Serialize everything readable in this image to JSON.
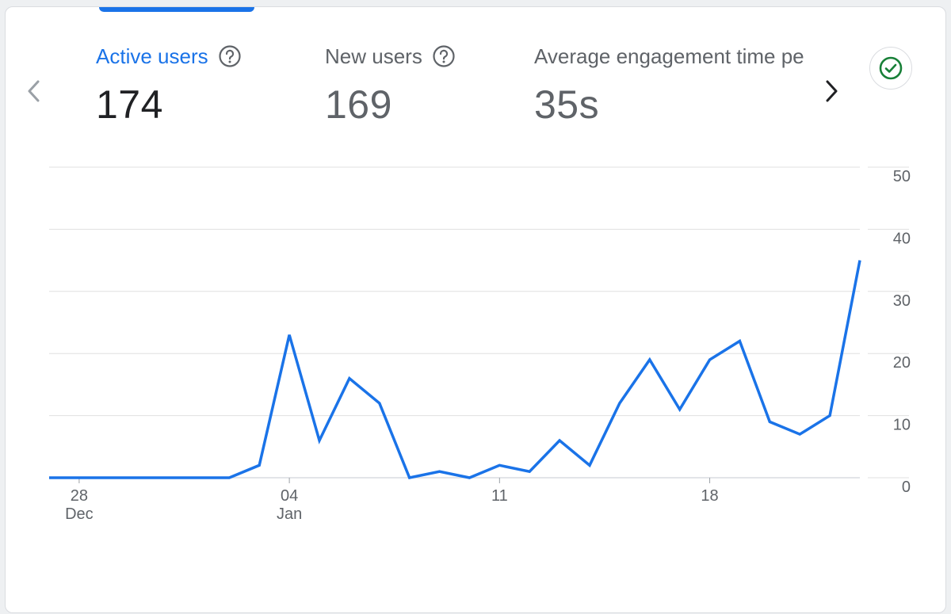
{
  "metrics": [
    {
      "label": "Active users",
      "value": "174"
    },
    {
      "label": "New users",
      "value": "169"
    },
    {
      "label": "Average engagement time per active user",
      "value": "35s"
    }
  ],
  "icons": {
    "prev": "chevron-left-icon",
    "next": "chevron-right-icon",
    "help": "help-circle-icon",
    "status": "check-circle-icon"
  },
  "colors": {
    "accent": "#1a73e8",
    "line": "#1a73e8",
    "status_green": "#188038",
    "grid": "#e0e0e0",
    "muted_text": "#5f6368"
  },
  "chart_data": {
    "type": "line",
    "x": [
      "2023-12-27",
      "2023-12-28",
      "2023-12-29",
      "2023-12-30",
      "2023-12-31",
      "2024-01-01",
      "2024-01-02",
      "2024-01-03",
      "2024-01-04",
      "2024-01-05",
      "2024-01-06",
      "2024-01-07",
      "2024-01-08",
      "2024-01-09",
      "2024-01-10",
      "2024-01-11",
      "2024-01-12",
      "2024-01-13",
      "2024-01-14",
      "2024-01-15",
      "2024-01-16",
      "2024-01-17",
      "2024-01-18",
      "2024-01-19",
      "2024-01-20",
      "2024-01-21",
      "2024-01-22",
      "2024-01-23"
    ],
    "series": [
      {
        "values": [
          0,
          0,
          0,
          0,
          0,
          0,
          0,
          2,
          23,
          6,
          16,
          12,
          0,
          1,
          0,
          2,
          1,
          6,
          2,
          12,
          19,
          11,
          19,
          22,
          9,
          7,
          10,
          35
        ]
      }
    ],
    "x_tick_labels": [
      {
        "date": "2023-12-28",
        "day": "28",
        "month": "Dec"
      },
      {
        "date": "2024-01-04",
        "day": "04",
        "month": "Jan"
      },
      {
        "date": "2024-01-11",
        "day": "11",
        "month": ""
      },
      {
        "date": "2024-01-18",
        "day": "18",
        "month": ""
      }
    ],
    "y_ticks": [
      0,
      10,
      20,
      30,
      40,
      50
    ],
    "ylim": [
      0,
      50
    ],
    "y_axis_side": "right",
    "grid": true
  }
}
